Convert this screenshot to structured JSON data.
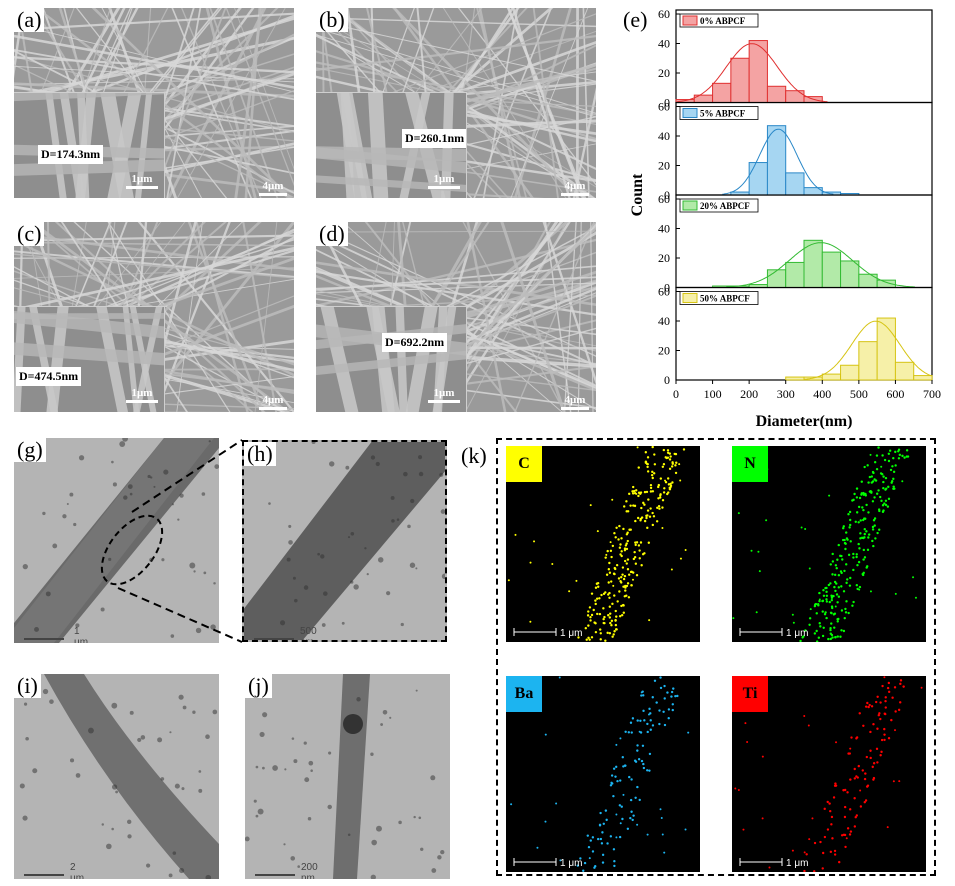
{
  "sem_panels": [
    {
      "id": "a",
      "label": "(a)",
      "diameter": "D=174.3nm",
      "inset_scale": "1μm",
      "main_scale": "4μm"
    },
    {
      "id": "b",
      "label": "(b)",
      "diameter": "D=260.1nm",
      "inset_scale": "1μm",
      "main_scale": "4μm"
    },
    {
      "id": "c",
      "label": "(c)",
      "diameter": "D=474.5nm",
      "inset_scale": "1μm",
      "main_scale": "4μm"
    },
    {
      "id": "d",
      "label": "(d)",
      "diameter": "D=692.2nm",
      "inset_scale": "1μm",
      "main_scale": "4μm"
    }
  ],
  "tem_panels": [
    {
      "id": "g",
      "label": "(g)",
      "scale": "1 μm"
    },
    {
      "id": "h",
      "label": "(h)",
      "scale": "500 nm"
    },
    {
      "id": "i",
      "label": "(i)",
      "scale": "2 μm"
    },
    {
      "id": "j",
      "label": "(j)",
      "scale": "200 nm"
    }
  ],
  "eds": {
    "label": "(k)",
    "maps": [
      {
        "element": "C",
        "color": "#ffff00",
        "scale": "1 μm"
      },
      {
        "element": "N",
        "color": "#00ff00",
        "scale": "1 μm"
      },
      {
        "element": "Ba",
        "color": "#1cb4f0",
        "scale": "1 μm"
      },
      {
        "element": "Ti",
        "color": "#ff0000",
        "scale": "1 μm"
      }
    ]
  },
  "chart_label": "(e)",
  "chart_data": {
    "type": "bar",
    "xlabel": "Diameter(nm)",
    "ylabel": "Count",
    "xlim": [
      0,
      700
    ],
    "ylim": [
      0,
      60
    ],
    "x_ticks": [
      0,
      100,
      200,
      300,
      400,
      500,
      600,
      700
    ],
    "y_ticks": [
      0,
      20,
      40,
      60
    ],
    "bin_width": 50,
    "series": [
      {
        "name": "0% ABPCF",
        "fill": "#f4a3a3",
        "edge": "#e03030",
        "bins": [
          25,
          75,
          125,
          175,
          225,
          275,
          325,
          375
        ],
        "values": [
          2,
          5,
          13,
          30,
          42,
          11,
          8,
          4
        ]
      },
      {
        "name": "5% ABPCF",
        "fill": "#a6d6f2",
        "edge": "#2a88c8",
        "bins": [
          175,
          225,
          275,
          325,
          375,
          425,
          475
        ],
        "values": [
          2,
          22,
          47,
          15,
          5,
          2,
          1
        ]
      },
      {
        "name": "20% ABPCF",
        "fill": "#b2eaa8",
        "edge": "#33bb33",
        "bins": [
          125,
          175,
          225,
          275,
          325,
          375,
          425,
          475,
          525,
          575
        ],
        "values": [
          1,
          1,
          2,
          12,
          17,
          32,
          24,
          18,
          9,
          5
        ]
      },
      {
        "name": "50% ABPCF",
        "fill": "#f6f0a8",
        "edge": "#d6c414",
        "bins": [
          325,
          375,
          425,
          475,
          525,
          575,
          625,
          675
        ],
        "values": [
          2,
          2,
          4,
          10,
          26,
          42,
          12,
          3
        ]
      }
    ]
  }
}
